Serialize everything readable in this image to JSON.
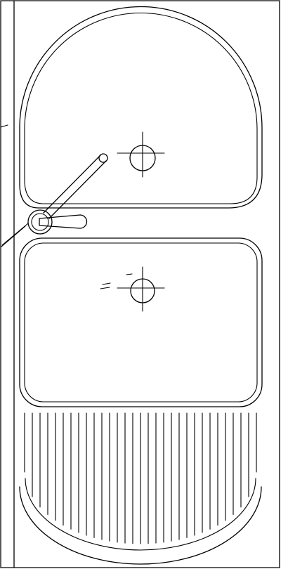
{
  "drawing": {
    "subject": "double-bowl-sink-with-drainboard",
    "line_color": "#000000",
    "background_color": "#ffffff",
    "bowls": [
      {
        "id": "upper-bowl",
        "shape": "semicircular-top",
        "drain": true
      },
      {
        "id": "lower-bowl",
        "shape": "rounded-rectangle",
        "drain": true
      }
    ],
    "faucet": {
      "type": "swivel-spout",
      "handles": 1
    },
    "drainboard": {
      "groove_count": 31
    }
  }
}
